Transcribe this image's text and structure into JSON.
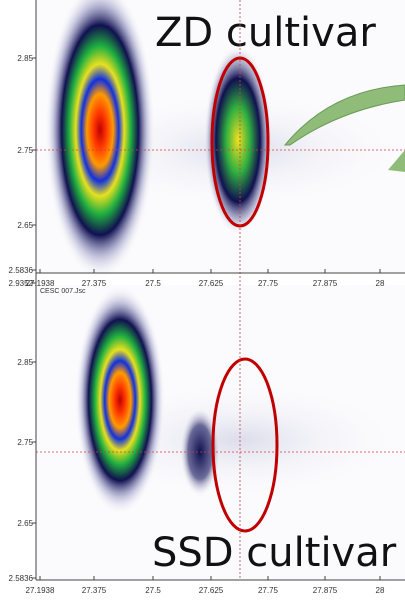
{
  "panels": [
    {
      "caption": "ZD cultivar",
      "y_ticks": [
        "2.85",
        "2.75",
        "2.65",
        "2.5836"
      ],
      "x_ticks": [
        "27.1938",
        "27.375",
        "27.5",
        "27.625",
        "27.75",
        "27.875",
        "28"
      ]
    },
    {
      "file_label": "CESC 007.Jsc",
      "caption": "SSD cultivar",
      "y_ticks": [
        "2.9352",
        "2.85",
        "2.75",
        "2.65",
        "2.5836"
      ],
      "x_ticks": [
        "27.1938",
        "27.375",
        "27.5",
        "27.625",
        "27.75",
        "27.875",
        "28"
      ]
    }
  ]
}
